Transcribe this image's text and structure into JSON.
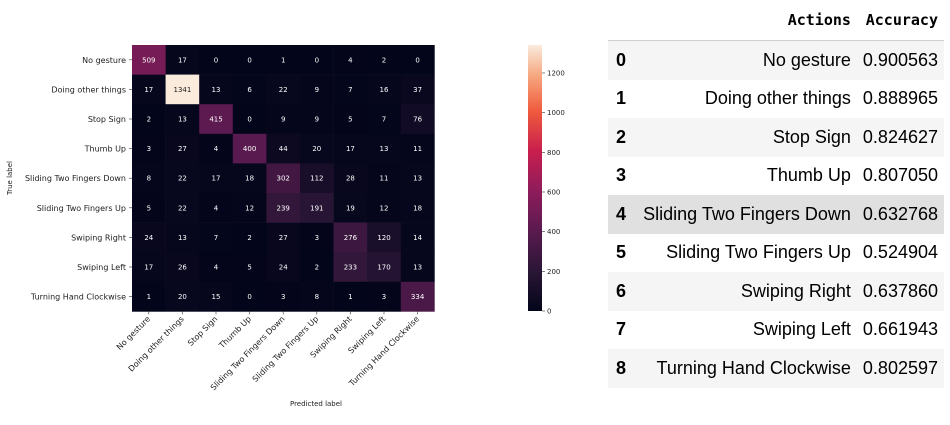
{
  "chart_data": {
    "type": "heatmap",
    "xlabel": "Predicted label",
    "ylabel": "True label",
    "labels": [
      "No gesture",
      "Doing other things",
      "Stop Sign",
      "Thumb Up",
      "Sliding Two Fingers Down",
      "Sliding Two Fingers Up",
      "Swiping Right",
      "Swiping Left",
      "Turning Hand Clockwise"
    ],
    "matrix": [
      [
        509,
        17,
        0,
        0,
        1,
        0,
        4,
        2,
        0
      ],
      [
        17,
        1341,
        13,
        6,
        22,
        9,
        7,
        16,
        37
      ],
      [
        2,
        13,
        415,
        0,
        9,
        9,
        5,
        7,
        76
      ],
      [
        3,
        27,
        4,
        400,
        44,
        20,
        17,
        13,
        11
      ],
      [
        8,
        22,
        17,
        18,
        302,
        112,
        28,
        11,
        13
      ],
      [
        5,
        22,
        4,
        12,
        239,
        191,
        19,
        12,
        18
      ],
      [
        24,
        13,
        7,
        2,
        27,
        3,
        276,
        120,
        14
      ],
      [
        17,
        26,
        4,
        5,
        24,
        2,
        233,
        170,
        13
      ],
      [
        1,
        20,
        15,
        0,
        3,
        8,
        1,
        3,
        334
      ]
    ],
    "colorbar": {
      "min": 0,
      "max": 1341,
      "ticks": [
        0,
        200,
        400,
        600,
        800,
        1000,
        1200
      ],
      "colormap": "rocket"
    }
  },
  "table": {
    "headers": [
      "",
      "Actions",
      "Accuracy"
    ],
    "rows": [
      {
        "index": "0",
        "action": "No gesture",
        "accuracy": "0.900563"
      },
      {
        "index": "1",
        "action": "Doing other things",
        "accuracy": "0.888965"
      },
      {
        "index": "2",
        "action": "Stop Sign",
        "accuracy": "0.824627"
      },
      {
        "index": "3",
        "action": "Thumb Up",
        "accuracy": "0.807050"
      },
      {
        "index": "4",
        "action": "Sliding Two Fingers Down",
        "accuracy": "0.632768"
      },
      {
        "index": "5",
        "action": "Sliding Two Fingers Up",
        "accuracy": "0.524904"
      },
      {
        "index": "6",
        "action": "Swiping Right",
        "accuracy": "0.637860"
      },
      {
        "index": "7",
        "action": "Swiping Left",
        "accuracy": "0.661943"
      },
      {
        "index": "8",
        "action": "Turning Hand Clockwise",
        "accuracy": "0.802597"
      }
    ],
    "highlighted_row": 4
  }
}
